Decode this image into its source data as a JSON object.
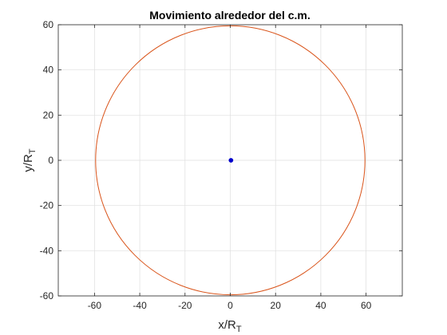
{
  "chart_data": {
    "type": "line",
    "title": "Movimiento alrededor del c.m.",
    "xlabel": {
      "base": "x/R",
      "sub": "T"
    },
    "ylabel": {
      "base": "y/R",
      "sub": "T"
    },
    "xlim": [
      -76,
      76
    ],
    "ylim": [
      -60,
      60
    ],
    "xticks": [
      -60,
      -40,
      -20,
      0,
      20,
      40,
      60
    ],
    "yticks": [
      -60,
      -40,
      -20,
      0,
      20,
      40,
      60
    ],
    "xtick_labels": [
      "-60",
      "-40",
      "-20",
      "0",
      "20",
      "40",
      "60"
    ],
    "ytick_labels": [
      "-60",
      "-40",
      "-20",
      "0",
      "20",
      "40",
      "60"
    ],
    "grid": true,
    "series": [
      {
        "kind": "circle",
        "center": [
          0,
          0
        ],
        "radius": 59.5,
        "color": "#D95319"
      },
      {
        "kind": "circle",
        "center": [
          0.3,
          0
        ],
        "radius": 0.75,
        "color": "#0000CC",
        "filled": true
      }
    ]
  }
}
